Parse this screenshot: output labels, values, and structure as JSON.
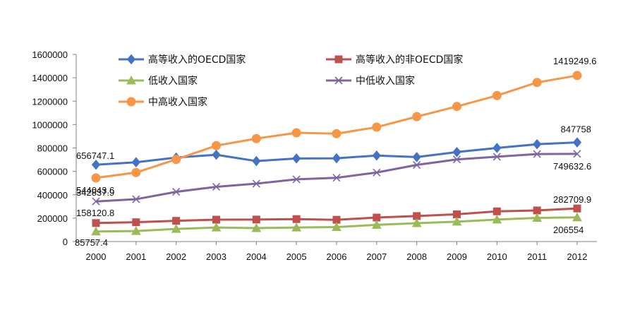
{
  "chart_data": {
    "type": "line",
    "categories": [
      "2000",
      "2001",
      "2002",
      "2003",
      "2004",
      "2005",
      "2006",
      "2007",
      "2008",
      "2009",
      "2010",
      "2011",
      "2012"
    ],
    "ylim": [
      0,
      1600000
    ],
    "yticks": [
      "0",
      "200000",
      "400000",
      "600000",
      "800000",
      "1000000",
      "1200000",
      "1400000",
      "1600000"
    ],
    "grid": false,
    "legend_position": "top-left",
    "series": [
      {
        "name": "高等收入的OECD国家",
        "color": "#4472C4",
        "marker": "diamond",
        "values": [
          656747.1,
          678000,
          718000,
          742000,
          688000,
          710000,
          712000,
          735000,
          722000,
          765000,
          800000,
          832000,
          847758
        ]
      },
      {
        "name": "高等收入的非OECD国家",
        "color": "#C0504D",
        "marker": "square",
        "values": [
          158120.8,
          165000,
          177000,
          187000,
          188000,
          192000,
          186000,
          205000,
          218000,
          233000,
          258000,
          266000,
          282709.9
        ]
      },
      {
        "name": "低收入国家",
        "color": "#9BBB59",
        "marker": "triangle",
        "values": [
          85757.4,
          90000,
          108000,
          120000,
          115000,
          120000,
          124000,
          143000,
          157000,
          170000,
          188000,
          202000,
          206554
        ]
      },
      {
        "name": "中低收入国家",
        "color": "#8064A2",
        "marker": "x",
        "values": [
          342837.9,
          362000,
          425000,
          468000,
          495000,
          532000,
          545000,
          590000,
          655000,
          702000,
          725000,
          748000,
          749632.6
        ]
      },
      {
        "name": "中高收入国家",
        "color": "#F79646",
        "marker": "circle",
        "values": [
          544043.6,
          590000,
          702000,
          820000,
          880000,
          930000,
          922000,
          978000,
          1068000,
          1155000,
          1248000,
          1360000,
          1419249.6
        ]
      }
    ],
    "data_labels": [
      {
        "series": 0,
        "index": 0,
        "text": "656747.1"
      },
      {
        "series": 0,
        "index": 12,
        "text": "847758"
      },
      {
        "series": 1,
        "index": 0,
        "text": "158120.8"
      },
      {
        "series": 1,
        "index": 12,
        "text": "282709.9"
      },
      {
        "series": 2,
        "index": 0,
        "text": "85757.4"
      },
      {
        "series": 2,
        "index": 12,
        "text": "206554"
      },
      {
        "series": 3,
        "index": 0,
        "text": "342837.9"
      },
      {
        "series": 3,
        "index": 12,
        "text": "749632.6"
      },
      {
        "series": 4,
        "index": 0,
        "text": "544043.6"
      },
      {
        "series": 4,
        "index": 12,
        "text": "1419249.6"
      }
    ]
  }
}
